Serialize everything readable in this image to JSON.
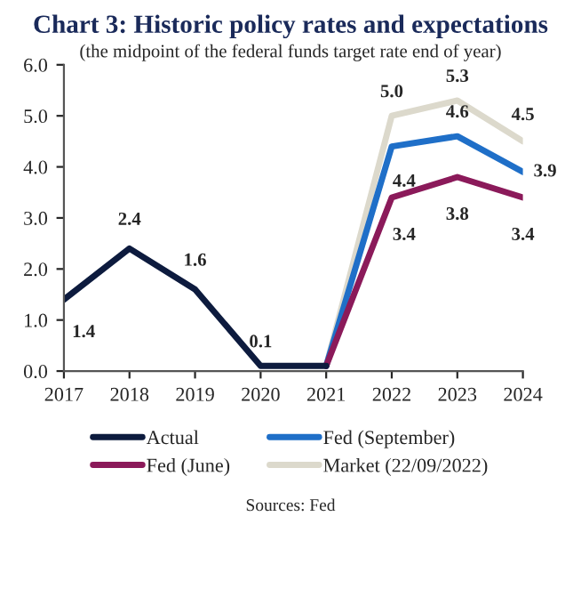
{
  "chart_data": {
    "type": "line",
    "title": "Chart 3: Historic policy rates and expectations",
    "subtitle": "(the midpoint of the federal funds target rate end of year)",
    "categories": [
      "2017",
      "2018",
      "2019",
      "2020",
      "2021",
      "2022",
      "2023",
      "2024"
    ],
    "series": [
      {
        "name": "Actual",
        "color": "#0d1b3e",
        "values": [
          1.4,
          2.4,
          1.6,
          0.1,
          0.1,
          null,
          null,
          null
        ],
        "value_labels": [
          "1.4",
          "2.4",
          "1.6",
          "0.1",
          null,
          null,
          null,
          null
        ]
      },
      {
        "name": "Fed (June)",
        "color": "#8b1a5a",
        "values": [
          null,
          null,
          null,
          null,
          0.1,
          3.4,
          3.8,
          3.4
        ],
        "value_labels": [
          null,
          null,
          null,
          null,
          null,
          "3.4",
          "3.8",
          "3.4"
        ]
      },
      {
        "name": "Fed (September)",
        "color": "#1f6fc8",
        "values": [
          null,
          null,
          null,
          null,
          0.1,
          4.4,
          4.6,
          3.9
        ],
        "value_labels": [
          null,
          null,
          null,
          null,
          null,
          "4.4",
          "4.6",
          "3.9"
        ]
      },
      {
        "name": "Market (22/09/2022)",
        "color": "#dcd9cc",
        "values": [
          null,
          null,
          null,
          null,
          0.1,
          5.0,
          5.3,
          4.5
        ],
        "value_labels": [
          null,
          null,
          null,
          null,
          null,
          "5.0",
          "5.3",
          "4.5"
        ]
      }
    ],
    "ylim": [
      0,
      6
    ],
    "yticks": [
      {
        "value": 0,
        "label": "0.0"
      },
      {
        "value": 1,
        "label": "1.0"
      },
      {
        "value": 2,
        "label": "2.0"
      },
      {
        "value": 3,
        "label": "3.0"
      },
      {
        "value": 4,
        "label": "4.0"
      },
      {
        "value": 5,
        "label": "5.0"
      },
      {
        "value": 6,
        "label": "6.0"
      }
    ],
    "grid": false,
    "legend": "bottom",
    "marker": "none",
    "line_style": "solid",
    "annotations": [
      "Sources: Fed"
    ]
  }
}
